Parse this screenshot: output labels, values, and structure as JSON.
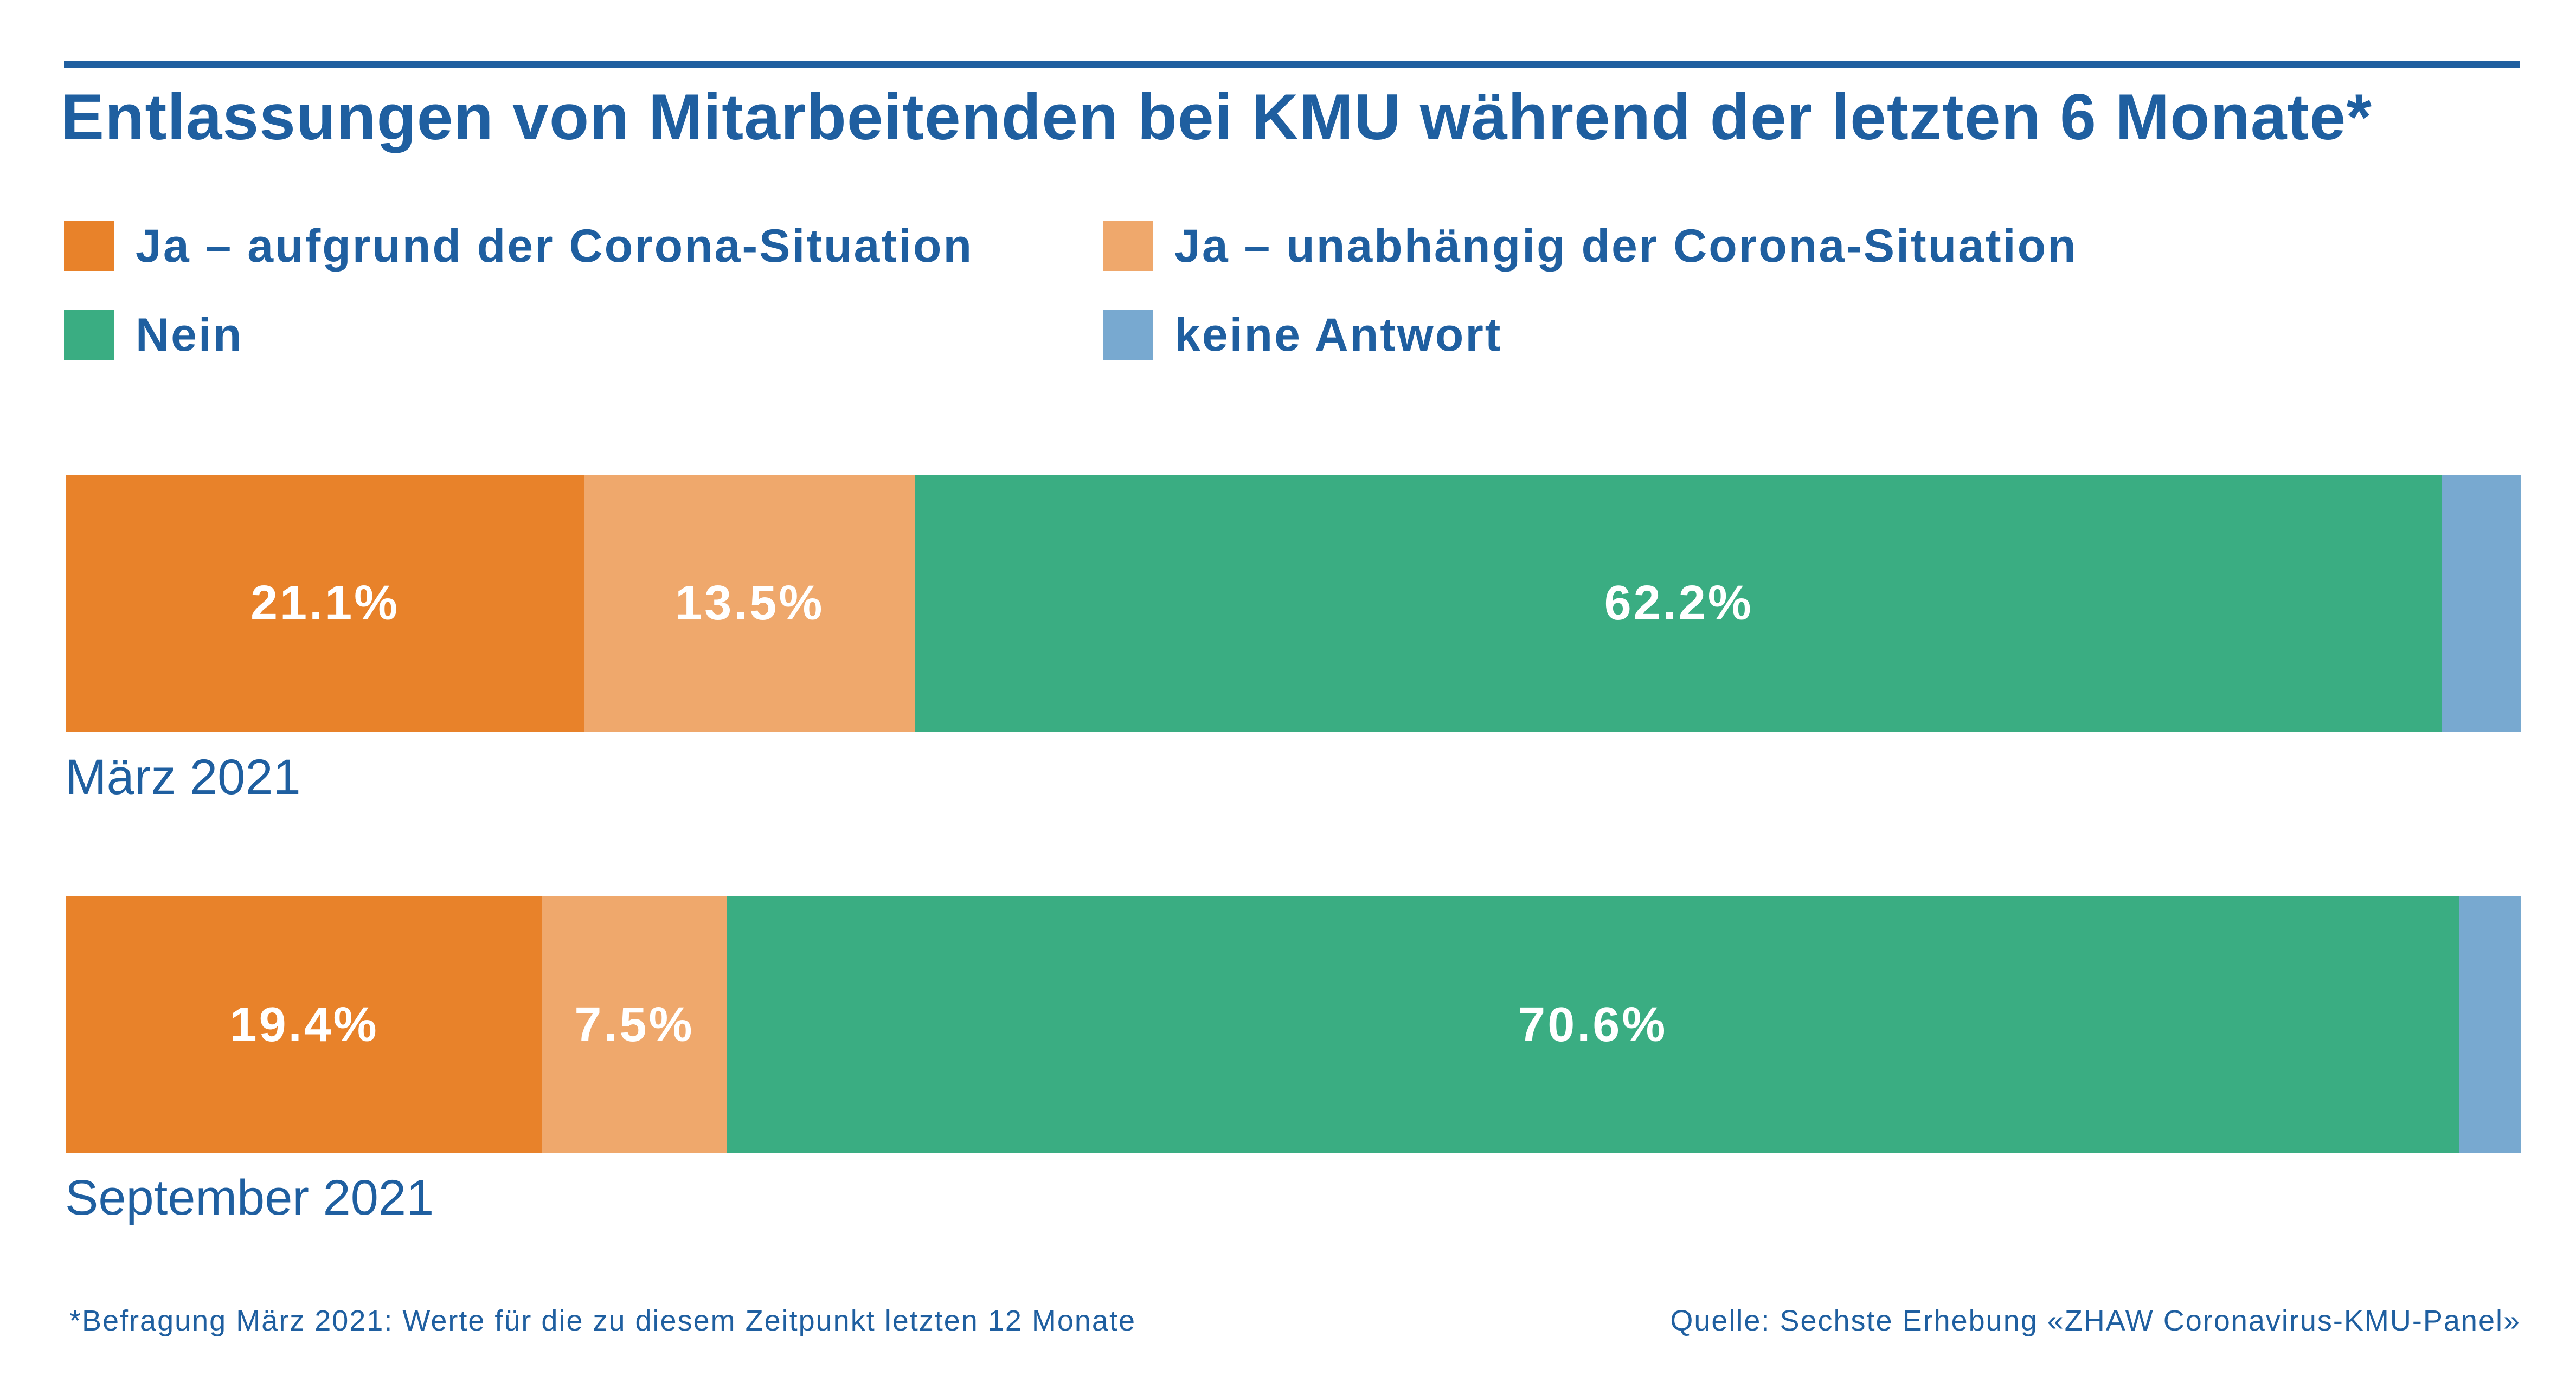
{
  "title": "Entlassungen von Mitarbeitenden bei KMU während der letzten 6 Monate*",
  "footnote": "*Befragung März 2021: Werte für die zu diesem Zeitpunkt letzten 12 Monate",
  "source": "Quelle: Sechste Erhebung «ZHAW Coronavirus-KMU-Panel»",
  "colors": {
    "title": "#1f5fa0",
    "corona": "#e8822a",
    "unabhaengig": "#efa86c",
    "nein": "#3aad82",
    "keine_antwort": "#78a9d0"
  },
  "chart_data": {
    "type": "bar",
    "orientation": "horizontal",
    "stacked": true,
    "title": "Entlassungen von Mitarbeitenden bei KMU während der letzten 6 Monate*",
    "categories": [
      "März 2021",
      "September 2021"
    ],
    "xlim": [
      0,
      100
    ],
    "grid": false,
    "legend_position": "top",
    "legend": [
      "Ja – aufgrund der Corona-Situation",
      "Ja – unabhängig der Corona-Situation",
      "Nein",
      "keine Antwort"
    ],
    "series": [
      {
        "name": "Ja – aufgrund der Corona-Situation",
        "color": "#e8822a",
        "values": [
          21.1,
          19.4
        ],
        "labels": [
          "21.1%",
          "19.4%"
        ]
      },
      {
        "name": "Ja – unabhängig der Corona-Situation",
        "color": "#efa86c",
        "values": [
          13.5,
          7.5
        ],
        "labels": [
          "13.5%",
          "7.5%"
        ]
      },
      {
        "name": "Nein",
        "color": "#3aad82",
        "values": [
          62.2,
          70.6
        ],
        "labels": [
          "62.2%",
          "70.6%"
        ]
      },
      {
        "name": "keine Antwort",
        "color": "#78a9d0",
        "values": [
          3.2,
          2.5
        ],
        "labels": [
          "",
          ""
        ]
      }
    ]
  }
}
